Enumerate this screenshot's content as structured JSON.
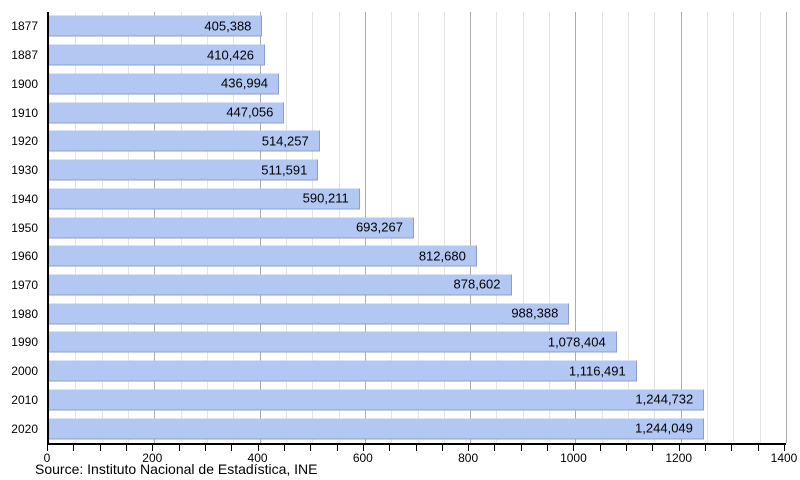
{
  "chart_data": {
    "type": "bar",
    "orientation": "horizontal",
    "title": "",
    "xlabel": "",
    "ylabel": "",
    "categories": [
      "1877",
      "1887",
      "1900",
      "1910",
      "1920",
      "1930",
      "1940",
      "1950",
      "1960",
      "1970",
      "1980",
      "1990",
      "2000",
      "2010",
      "2020"
    ],
    "values": [
      405388,
      410426,
      436994,
      447056,
      514257,
      511591,
      590211,
      693267,
      812680,
      878602,
      988388,
      1078404,
      1116491,
      1244732,
      1244049
    ],
    "value_labels": [
      "405,388",
      "410,426",
      "436,994",
      "447,056",
      "514,257",
      "511,591",
      "590,211",
      "693,267",
      "812,680",
      "878,602",
      "988,388",
      "1,078,404",
      "1,116,491",
      "1,244,732",
      "1,244,049"
    ],
    "xlim": [
      0,
      1400
    ],
    "x_unit_divisor": 1000,
    "x_tick_labels": [
      "0",
      "200",
      "400",
      "600",
      "800",
      "1000",
      "1200",
      "1400"
    ],
    "x_label_step": 200,
    "x_minor_step": 50,
    "grid": "vertical, minor every 50, major every 200",
    "legend": "none",
    "source": "Source: Instituto Nacional de Estadística, INE",
    "colors": {
      "bar_fill": "#b3c7f3",
      "bar_edge": "#8c9cd0",
      "grid_minor": "#e3e3e3",
      "grid_major": "#ababab",
      "axis": "#000000",
      "text": "#000000",
      "background": "#ffffff"
    }
  }
}
